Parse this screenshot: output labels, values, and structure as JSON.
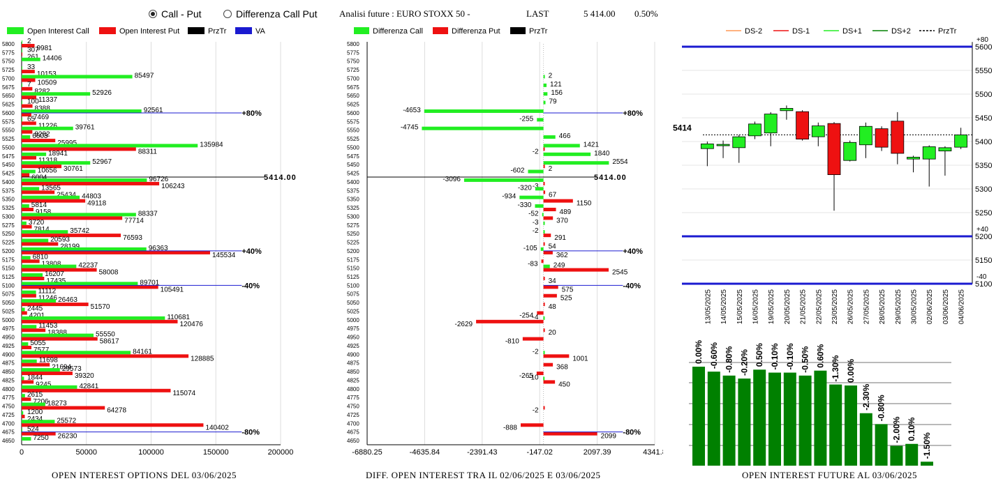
{
  "header": {
    "radio_call_put": "Call - Put",
    "radio_diff": "Differenza Call Put",
    "analysis_title": "Analisi future : EURO STOXX 50 -",
    "last_label": "LAST",
    "last_value": "5 414.00",
    "last_change": "0.50%"
  },
  "colors": {
    "green": "#22ee22",
    "red": "#ee1111",
    "dark_green": "#008000",
    "blue": "#1a1ad0",
    "black": "#000000",
    "orange": "#ff9955"
  },
  "strikes": [
    5800,
    5775,
    5750,
    5725,
    5700,
    5675,
    5650,
    5625,
    5600,
    5575,
    5550,
    5525,
    5500,
    5475,
    5450,
    5425,
    5400,
    5375,
    5350,
    5325,
    5300,
    5275,
    5250,
    5225,
    5200,
    5175,
    5150,
    5125,
    5100,
    5075,
    5050,
    5025,
    5000,
    4975,
    4950,
    4925,
    4900,
    4875,
    4850,
    4825,
    4800,
    4775,
    4750,
    4725,
    4700,
    4675,
    4650
  ],
  "chart1": {
    "title": "OPEN INTEREST OPTIONS DEL 03/06/2025",
    "legend": [
      "Open Interest Call",
      "Open Interest Put",
      "PrzTr",
      "VA"
    ],
    "x_ticks": [
      "0",
      "50000",
      "100000",
      "150000",
      "200000"
    ],
    "xlim": [
      0,
      200000
    ],
    "calls": [
      2,
      307,
      14406,
      33,
      85497,
      7,
      52926,
      100,
      92561,
      65,
      39761,
      6603,
      135984,
      18941,
      52967,
      10656,
      96726,
      13565,
      44803,
      5814,
      88337,
      3720,
      35742,
      20593,
      96363,
      6810,
      42237,
      16207,
      89701,
      11112,
      26463,
      2445,
      110681,
      11453,
      55550,
      5055,
      84161,
      11698,
      29573,
      1844,
      42841,
      2615,
      18273,
      1200,
      25572,
      524,
      7250
    ],
    "puts": [
      9981,
      261,
      null,
      10153,
      10509,
      8282,
      11337,
      8388,
      7469,
      11226,
      8282,
      25995,
      88311,
      11318,
      30761,
      6004,
      106243,
      25434,
      49118,
      9158,
      77714,
      7814,
      76593,
      28199,
      145534,
      13808,
      58008,
      17435,
      105491,
      11246,
      51570,
      4201,
      120476,
      18388,
      58617,
      7577,
      128885,
      21694,
      39320,
      9245,
      115074,
      7206,
      64278,
      2434,
      140402,
      26230,
      null
    ],
    "price_value": "5414.00",
    "markers": [
      {
        "strike": 5600,
        "label": "+80%",
        "value": 170000
      },
      {
        "strike": 5200,
        "label": "+40%",
        "value": 170000
      },
      {
        "strike": 5100,
        "label": "-40%",
        "value": 170000
      },
      {
        "strike": 4675,
        "label": "-80%",
        "value": 170000
      }
    ]
  },
  "chart2": {
    "title": "DIFF. OPEN INTEREST TRA IL 02/06/2025 E 03/06/2025",
    "legend": [
      "Differenza Call",
      "Differenza Put",
      "PrzTr"
    ],
    "x_ticks": [
      "-6880.25",
      "-4635.84",
      "-2391.43",
      "-147.02",
      "2097.39",
      "4341.8"
    ],
    "xlim": [
      -6880.25,
      4341.8
    ],
    "items": [
      {
        "strike": 5700,
        "value": 2,
        "type": "call"
      },
      {
        "strike": 5675,
        "value": 121,
        "type": "call"
      },
      {
        "strike": 5650,
        "value": 156,
        "type": "call"
      },
      {
        "strike": 5625,
        "value": 79,
        "type": "call"
      },
      {
        "strike": 5600,
        "value": -4653,
        "type": "call"
      },
      {
        "strike": 5575,
        "value": -255,
        "type": "call"
      },
      {
        "strike": 5550,
        "value": -4745,
        "type": "call"
      },
      {
        "strike": 5525,
        "value": 466,
        "type": "call"
      },
      {
        "strike": 5500,
        "value": 1421,
        "type": "call"
      },
      {
        "strike": 5500,
        "value": -2,
        "type": "put"
      },
      {
        "strike": 5475,
        "value": 1840,
        "type": "call"
      },
      {
        "strike": 5450,
        "value": 2554,
        "type": "call"
      },
      {
        "strike": 5450,
        "value": 2,
        "type": "put"
      },
      {
        "strike": 5425,
        "value": -602,
        "type": "call"
      },
      {
        "strike": 5400,
        "value": -3096,
        "type": "call"
      },
      {
        "strike": 5400,
        "value": -3,
        "type": "put"
      },
      {
        "strike": 5375,
        "value": -320,
        "type": "call"
      },
      {
        "strike": 5375,
        "value": 67,
        "type": "put"
      },
      {
        "strike": 5350,
        "value": -934,
        "type": "call"
      },
      {
        "strike": 5350,
        "value": 1150,
        "type": "put"
      },
      {
        "strike": 5325,
        "value": -330,
        "type": "call"
      },
      {
        "strike": 5325,
        "value": 489,
        "type": "put"
      },
      {
        "strike": 5300,
        "value": -52,
        "type": "call"
      },
      {
        "strike": 5300,
        "value": 370,
        "type": "put"
      },
      {
        "strike": 5275,
        "value": -3,
        "type": "call"
      },
      {
        "strike": 5250,
        "value": -2,
        "type": "call"
      },
      {
        "strike": 5250,
        "value": 291,
        "type": "put"
      },
      {
        "strike": 5225,
        "value": 54,
        "type": "put"
      },
      {
        "strike": 5200,
        "value": -105,
        "type": "call"
      },
      {
        "strike": 5200,
        "value": 362,
        "type": "put"
      },
      {
        "strike": 5175,
        "value": -83,
        "type": "put"
      },
      {
        "strike": 5150,
        "value": 249,
        "type": "call"
      },
      {
        "strike": 5150,
        "value": 2545,
        "type": "put"
      },
      {
        "strike": 5125,
        "value": 34,
        "type": "put"
      },
      {
        "strike": 5100,
        "value": 575,
        "type": "put"
      },
      {
        "strike": 5075,
        "value": 525,
        "type": "put"
      },
      {
        "strike": 5050,
        "value": 48,
        "type": "put"
      },
      {
        "strike": 5025,
        "value": -254,
        "type": "put"
      },
      {
        "strike": 5000,
        "value": -2629,
        "type": "put"
      },
      {
        "strike": 5000,
        "value": -4,
        "type": "call"
      },
      {
        "strike": 4975,
        "value": 20,
        "type": "put"
      },
      {
        "strike": 4950,
        "value": -810,
        "type": "put"
      },
      {
        "strike": 4900,
        "value": -2,
        "type": "call"
      },
      {
        "strike": 4900,
        "value": 1001,
        "type": "put"
      },
      {
        "strike": 4875,
        "value": 368,
        "type": "put"
      },
      {
        "strike": 4850,
        "value": -265,
        "type": "put"
      },
      {
        "strike": 4825,
        "value": -10,
        "type": "call"
      },
      {
        "strike": 4825,
        "value": 450,
        "type": "put"
      },
      {
        "strike": 4750,
        "value": -2,
        "type": "put"
      },
      {
        "strike": 4700,
        "value": -888,
        "type": "put"
      },
      {
        "strike": 4675,
        "value": 2099,
        "type": "put"
      }
    ],
    "price_value": "5414.00",
    "markers": [
      {
        "strike": 5600,
        "label": "+80%",
        "value": 3100
      },
      {
        "strike": 5200,
        "label": "+40%",
        "value": 3100
      },
      {
        "strike": 5100,
        "label": "-40%",
        "value": 3100
      },
      {
        "strike": 4675,
        "label": "-80%",
        "value": 3100
      }
    ]
  },
  "chart3": {
    "title": "OPEN INTEREST FUTURE AL 03/06/2025",
    "legend": [
      "DS-2",
      "DS-1",
      "DS+1",
      "DS+2",
      "PrzTr"
    ],
    "y_ticks": [
      "5600",
      "5550",
      "5500",
      "5450",
      "5400",
      "5350",
      "5300",
      "5250",
      "5200",
      "5150",
      "5100"
    ],
    "ylim": [
      5100,
      5610
    ],
    "price_label": "5414",
    "price_value": 5414,
    "level_lines": [
      {
        "value": 5600,
        "label": "+80"
      },
      {
        "value": 5200,
        "label": "+40"
      },
      {
        "value": 5100,
        "label": "-40"
      }
    ],
    "dates": [
      "13/05/2025",
      "14/05/2025",
      "15/05/2025",
      "16/05/2025",
      "19/05/2025",
      "20/05/2025",
      "21/05/2025",
      "22/05/2025",
      "23/05/2025",
      "26/05/2025",
      "27/05/2025",
      "28/05/2025",
      "29/05/2025",
      "30/05/2025",
      "02/06/2025",
      "03/06/2025",
      "04/06/2025"
    ],
    "candles": [
      {
        "o": 5385,
        "c": 5395,
        "h": 5400,
        "l": 5348
      },
      {
        "o": 5392,
        "c": 5394,
        "h": 5402,
        "l": 5365
      },
      {
        "o": 5387,
        "c": 5410,
        "h": 5414,
        "l": 5355
      },
      {
        "o": 5412,
        "c": 5437,
        "h": 5442,
        "l": 5405
      },
      {
        "o": 5418,
        "c": 5458,
        "h": 5462,
        "l": 5390
      },
      {
        "o": 5465,
        "c": 5470,
        "h": 5476,
        "l": 5446
      },
      {
        "o": 5463,
        "c": 5405,
        "h": 5466,
        "l": 5402
      },
      {
        "o": 5410,
        "c": 5433,
        "h": 5440,
        "l": 5390
      },
      {
        "o": 5438,
        "c": 5330,
        "h": 5441,
        "l": 5254
      },
      {
        "o": 5360,
        "c": 5398,
        "h": 5402,
        "l": 5358
      },
      {
        "o": 5393,
        "c": 5432,
        "h": 5440,
        "l": 5365
      },
      {
        "o": 5427,
        "c": 5388,
        "h": 5432,
        "l": 5380
      },
      {
        "o": 5443,
        "c": 5375,
        "h": 5462,
        "l": 5352
      },
      {
        "o": 5363,
        "c": 5367,
        "h": 5370,
        "l": 5335
      },
      {
        "o": 5363,
        "c": 5389,
        "h": 5392,
        "l": 5305
      },
      {
        "o": 5380,
        "c": 5387,
        "h": 5390,
        "l": 5328
      },
      {
        "o": 5388,
        "c": 5414,
        "h": 5429,
        "l": 5384
      }
    ],
    "bar_values": [
      0.0,
      -0.6,
      -0.8,
      -0.2,
      0.5,
      -0.1,
      -0.1,
      -0.5,
      0.6,
      -1.3,
      0.0,
      -2.3,
      -0.8,
      -2.0,
      0.1,
      -1.5
    ],
    "bar_labels": [
      "0.00%",
      "-0.60%",
      "-0.80%",
      "-0.20%",
      "0.50%",
      "-0.10%",
      "-0.10%",
      "-0.50%",
      "0.60%",
      "-1.30%",
      "0.00%",
      "-2.30%",
      "-0.80%",
      "-2.00%",
      "0.10%",
      "-1.50%"
    ],
    "bar_heights": [
      1.0,
      0.95,
      0.91,
      0.88,
      0.97,
      0.94,
      0.94,
      0.91,
      0.96,
      0.82,
      0.81,
      0.53,
      0.42,
      0.2,
      0.22,
      0.04
    ]
  }
}
